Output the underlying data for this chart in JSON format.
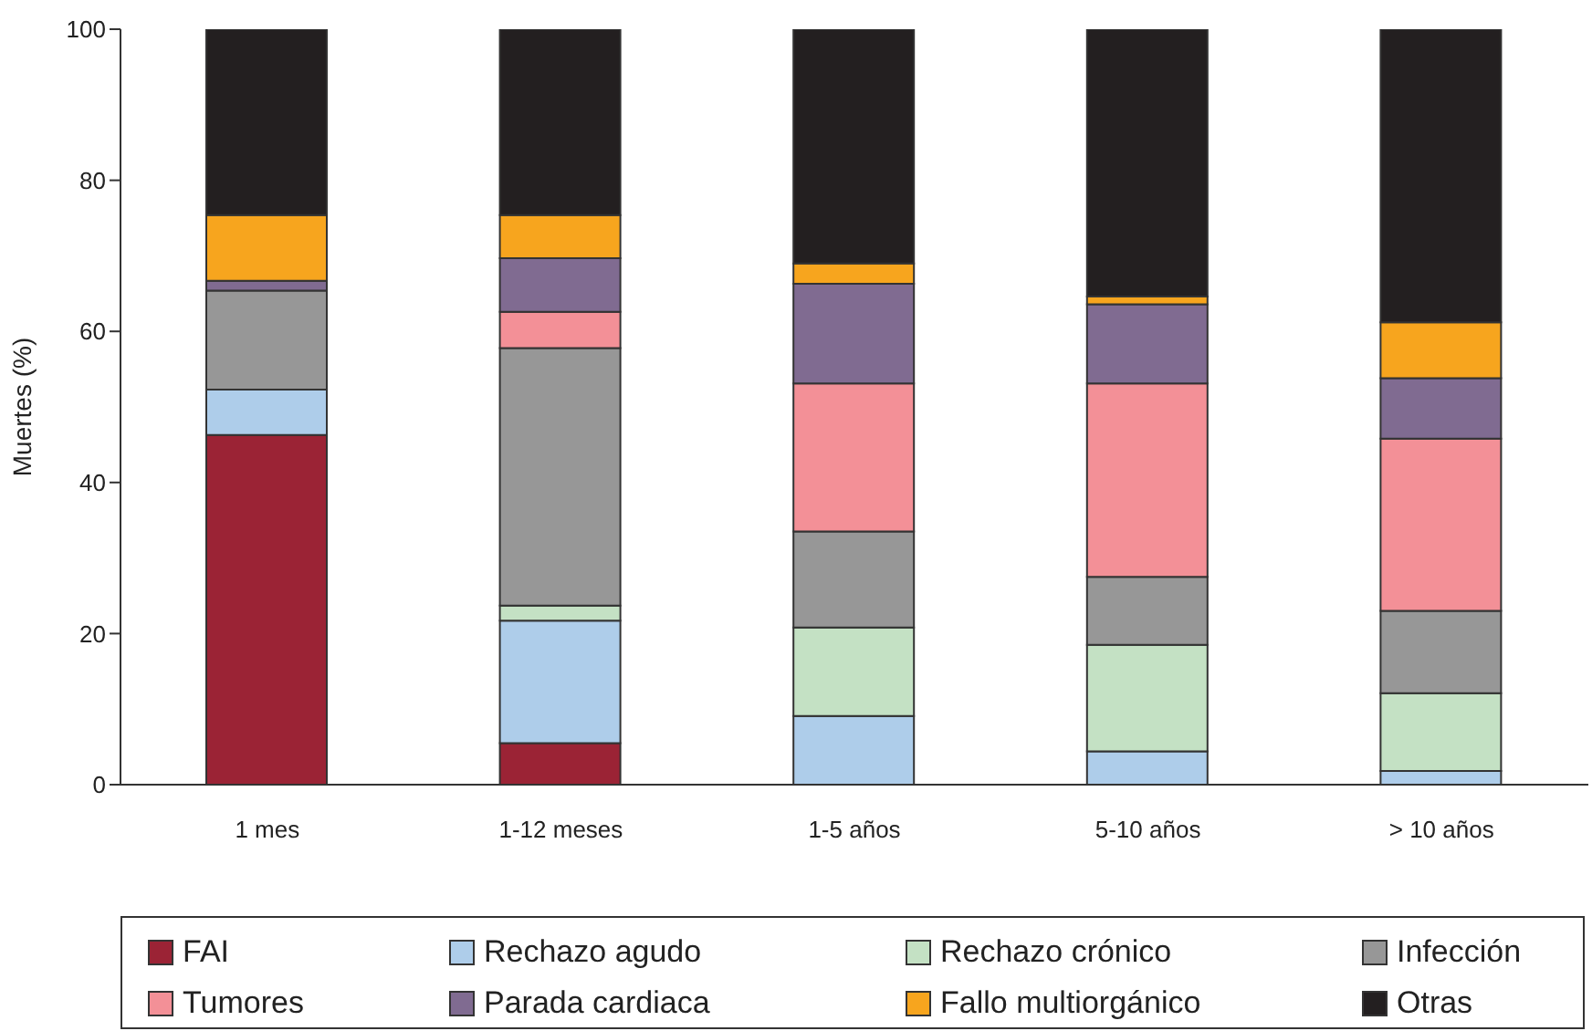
{
  "chart_data": {
    "type": "bar",
    "stacked": true,
    "ylabel": "Muertes (%)",
    "categories": [
      "1 mes",
      "1-12 meses",
      "1-5 años",
      "5-10 años",
      "> 10 años"
    ],
    "series": [
      {
        "name": "FAI",
        "color": "#9b2335",
        "values": [
          46.3,
          5.5,
          0,
          0,
          0
        ]
      },
      {
        "name": "Rechazo agudo",
        "color": "#aecdea",
        "values": [
          6.0,
          16.2,
          9.1,
          4.4,
          1.8
        ]
      },
      {
        "name": "Rechazo crónico",
        "color": "#c4e1c4",
        "values": [
          0,
          2.0,
          11.7,
          14.1,
          10.3
        ]
      },
      {
        "name": "Infección",
        "color": "#979797",
        "values": [
          13.1,
          34.1,
          12.7,
          9.0,
          10.9
        ]
      },
      {
        "name": "Tumores",
        "color": "#f39097",
        "values": [
          0,
          4.8,
          19.6,
          25.6,
          22.8
        ]
      },
      {
        "name": "Parada cardiaca",
        "color": "#806b91",
        "values": [
          1.3,
          7.1,
          13.2,
          10.5,
          8.0
        ]
      },
      {
        "name": "Fallo multiorgánico",
        "color": "#f7a51e",
        "values": [
          8.7,
          5.7,
          2.7,
          1.0,
          7.4
        ]
      },
      {
        "name": "Otras",
        "color": "#231f20",
        "values": [
          24.6,
          24.6,
          31.0,
          35.4,
          38.8
        ]
      }
    ],
    "ylim": [
      0,
      100
    ],
    "yticks": [
      0,
      20,
      40,
      60,
      80,
      100
    ],
    "grid": false,
    "legend": "bottom"
  }
}
